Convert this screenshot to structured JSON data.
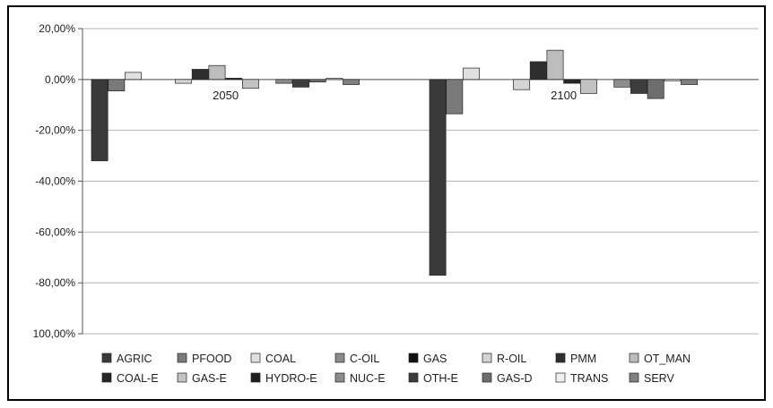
{
  "chart_data": {
    "type": "bar",
    "categories": [
      "2050",
      "2100"
    ],
    "ylim": [
      -100,
      20
    ],
    "y_ticks": [
      "20,00%",
      "0,00%",
      "-20,00%",
      "-40,00%",
      "-60,00%",
      "-80,00%",
      "100,00%"
    ],
    "grid": "horizontal",
    "legend_position": "bottom",
    "series": [
      {
        "name": "AGRIC",
        "color": "#3a3a3a",
        "values": [
          -32,
          -77
        ]
      },
      {
        "name": "PFOOD",
        "color": "#7a7a7a",
        "values": [
          -4.5,
          -13.5
        ]
      },
      {
        "name": "COAL",
        "color": "#e0e0e0",
        "values": [
          2.8,
          4.5
        ]
      },
      {
        "name": "C-OIL",
        "color": "#8a8a8a",
        "values": [
          0,
          0
        ]
      },
      {
        "name": "GAS",
        "color": "#111111",
        "values": [
          0,
          0
        ]
      },
      {
        "name": "R-OIL",
        "color": "#d4d4d4",
        "values": [
          -1.5,
          -4
        ]
      },
      {
        "name": "PMM",
        "color": "#2e2e2e",
        "values": [
          4,
          7
        ]
      },
      {
        "name": "OT_MAN",
        "color": "#bdbdbd",
        "values": [
          5.5,
          11.5
        ]
      },
      {
        "name": "COAL-E",
        "color": "#262626",
        "values": [
          0.5,
          -1.5
        ]
      },
      {
        "name": "GAS-E",
        "color": "#c2c2c2",
        "values": [
          -3.5,
          -5.5
        ]
      },
      {
        "name": "HYDRO-E",
        "color": "#1e1e1e",
        "values": [
          0,
          0
        ]
      },
      {
        "name": "NUC-E",
        "color": "#8c8c8c",
        "values": [
          -1.5,
          -3
        ]
      },
      {
        "name": "OTH-E",
        "color": "#3c3c3c",
        "values": [
          -3,
          -5.5
        ]
      },
      {
        "name": "GAS-D",
        "color": "#6e6e6e",
        "values": [
          -1,
          -7.5
        ]
      },
      {
        "name": "TRANS",
        "color": "#f0f0f0",
        "values": [
          0.5,
          -0.5
        ]
      },
      {
        "name": "SERV",
        "color": "#808080",
        "values": [
          -2,
          -2
        ]
      }
    ]
  }
}
